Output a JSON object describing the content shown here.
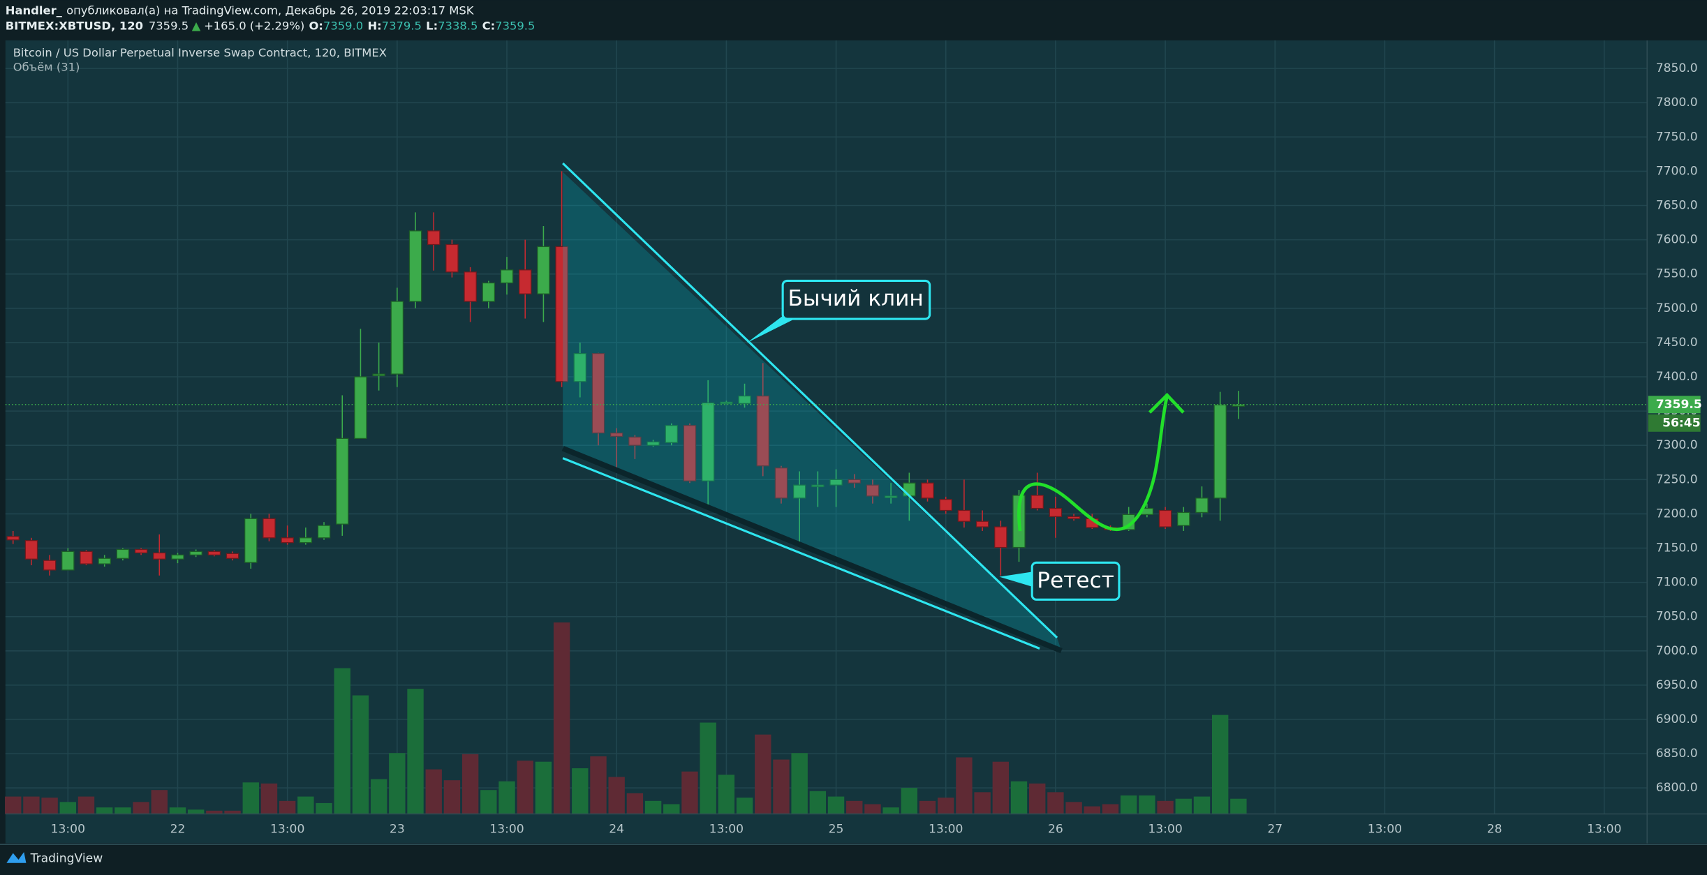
{
  "header": {
    "author": "Handler_",
    "published": "опубликовал(а) на TradingView.com, Декабрь 26, 2019 22:03:17 MSK",
    "symbol": "BITMEX:XBTUSD, 120",
    "arrow": "▲",
    "change": "+165.0 (+2.29%)",
    "ohlc": [
      {
        "label": "O:",
        "value": "7359.0"
      },
      {
        "label": "H:",
        "value": "7379.5"
      },
      {
        "label": "L:",
        "value": "7338.5"
      },
      {
        "label": "C:",
        "value": "7359.5"
      }
    ]
  },
  "footer": {
    "brand": "TradingView"
  },
  "chart_data": {
    "type": "candlestick",
    "title": "Bitcoin / US Dollar Perpetual Inverse Swap Contract, 120, BITMEX",
    "volume_label": "Объём (31)",
    "annotations": [
      "Бычий клин",
      "Ретест"
    ],
    "last_price": 7359.5,
    "countdown": "56:45",
    "up_color": "#3cab4b",
    "down_color": "#c62a30",
    "volume_up_color": "#1b6e3a",
    "volume_down_color": "#5f2a34",
    "grid": true,
    "x": [
      null,
      null,
      null,
      "13:00",
      null,
      null,
      null,
      null,
      null,
      "22",
      null,
      null,
      null,
      null,
      null,
      "13:00",
      null,
      null,
      null,
      null,
      null,
      "23",
      null,
      null,
      null,
      null,
      null,
      "13:00",
      null,
      null,
      null,
      null,
      null,
      "24",
      null,
      null,
      null,
      null,
      null,
      "13:00",
      null,
      null,
      null,
      null,
      null,
      "25",
      null,
      null,
      null,
      null,
      null,
      "13:00",
      null,
      null,
      null,
      null,
      null,
      "26",
      null,
      null,
      null,
      null,
      null,
      "13:00",
      null,
      null,
      null,
      null,
      null,
      "27",
      null,
      null,
      null,
      null,
      null,
      "13:00",
      null,
      null,
      null,
      null,
      null,
      "28",
      null,
      null,
      null,
      null,
      null,
      "13:00",
      null
    ],
    "open": [
      7167,
      7161,
      7132,
      7118,
      7145,
      7127,
      7135,
      7148,
      7143,
      7134,
      7140,
      7145,
      7142,
      7129,
      7193,
      7165,
      7158,
      7165,
      7185,
      7310,
      7402,
      7404,
      7510,
      7613,
      7593,
      7553,
      7510,
      7537,
      7556,
      7521,
      7590,
      7393,
      7434,
      7318,
      7312,
      7300,
      7304,
      7329,
      7248,
      7362,
      7361,
      7372,
      7267,
      7223,
      7241,
      7242,
      7250,
      7242,
      7226,
      7226,
      7245,
      7221,
      7205,
      7189,
      7181,
      7151,
      7227,
      7208,
      7196,
      7193,
      7180,
      7177,
      7199,
      7205,
      7183,
      7202,
      7223,
      7359.0,
      null,
      null,
      null,
      null,
      null,
      null,
      null,
      null,
      null,
      null,
      null,
      null,
      null,
      null,
      null,
      null,
      null,
      null,
      null,
      null,
      null
    ],
    "high": [
      7175,
      7165,
      7140,
      7150,
      7147,
      7140,
      7150,
      7150,
      7170,
      7143,
      7148,
      7147,
      7145,
      7200,
      7200,
      7183,
      7180,
      7188,
      7373,
      7470,
      7450,
      7530,
      7640,
      7640,
      7600,
      7560,
      7540,
      7575,
      7600,
      7620,
      7700,
      7450,
      7435,
      7325,
      7315,
      7308,
      7332,
      7332,
      7395,
      7365,
      7390,
      7420,
      7270,
      7262,
      7262,
      7265,
      7258,
      7250,
      7245,
      7260,
      7250,
      7225,
      7250,
      7205,
      7190,
      7235,
      7260,
      7225,
      7200,
      7200,
      7183,
      7210,
      7215,
      7210,
      7210,
      7240,
      7378,
      7379.5,
      null,
      null,
      null,
      null,
      null,
      null,
      null,
      null,
      null,
      null,
      null,
      null,
      null,
      null,
      null,
      null,
      null,
      null,
      null,
      null,
      null
    ],
    "low": [
      7156,
      7125,
      7110,
      7118,
      7125,
      7123,
      7132,
      7140,
      7110,
      7128,
      7137,
      7138,
      7132,
      7120,
      7160,
      7155,
      7155,
      7162,
      7168,
      7310,
      7380,
      7385,
      7500,
      7555,
      7545,
      7480,
      7500,
      7520,
      7485,
      7480,
      7385,
      7370,
      7300,
      7265,
      7280,
      7298,
      7300,
      7245,
      7210,
      7360,
      7355,
      7255,
      7215,
      7155,
      7210,
      7210,
      7238,
      7215,
      7215,
      7190,
      7218,
      7200,
      7180,
      7175,
      7110,
      7130,
      7205,
      7165,
      7190,
      7178,
      7175,
      7175,
      7195,
      7178,
      7175,
      7195,
      7190,
      7338.5,
      null,
      null,
      null,
      null,
      null,
      null,
      null,
      null,
      null,
      null,
      null,
      null,
      null,
      null,
      null,
      null,
      null,
      null,
      null,
      null,
      null
    ],
    "close": [
      7162,
      7134,
      7118,
      7145,
      7127,
      7135,
      7148,
      7143,
      7134,
      7140,
      7145,
      7140,
      7135,
      7193,
      7165,
      7158,
      7165,
      7183,
      7310,
      7400,
      7404,
      7510,
      7613,
      7593,
      7553,
      7510,
      7537,
      7556,
      7521,
      7590,
      7393,
      7434,
      7318,
      7313,
      7300,
      7305,
      7329,
      7248,
      7362,
      7363,
      7372,
      7270,
      7223,
      7242,
      7242,
      7250,
      7245,
      7226,
      7226,
      7245,
      7223,
      7205,
      7189,
      7181,
      7151,
      7227,
      7208,
      7196,
      7193,
      7180,
      7177,
      7199,
      7208,
      7181,
      7202,
      7223,
      7359,
      7359.5,
      null,
      null,
      null,
      null,
      null,
      null,
      null,
      null,
      null,
      null,
      null,
      null,
      null,
      null,
      null,
      null,
      null,
      null,
      null,
      null,
      null
    ],
    "volume": [
      16,
      16,
      15,
      11,
      16,
      6,
      6,
      11,
      22,
      6,
      4,
      3,
      3,
      29,
      28,
      12,
      16,
      10,
      134,
      109,
      32,
      56,
      115,
      41,
      31,
      55,
      22,
      30,
      49,
      48,
      176,
      42,
      53,
      34,
      19,
      12,
      9,
      39,
      84,
      36,
      15,
      73,
      50,
      56,
      21,
      16,
      12,
      9,
      6,
      24,
      12,
      15,
      52,
      20,
      48,
      30,
      28,
      20,
      11,
      7,
      9,
      17,
      17,
      12,
      14,
      16,
      91,
      14,
      null,
      null,
      null,
      null,
      null,
      null,
      null,
      null,
      null,
      null,
      null,
      null,
      null,
      null,
      null,
      null,
      null,
      null,
      null,
      null,
      null
    ],
    "ylim": [
      6762,
      7891
    ],
    "yticks": [
      {
        "value": 6800,
        "label": "6800.0"
      },
      {
        "value": 6850,
        "label": "6850.0"
      },
      {
        "value": 6900,
        "label": "6900.0"
      },
      {
        "value": 6950,
        "label": "6950.0"
      },
      {
        "value": 7000,
        "label": "7000.0"
      },
      {
        "value": 7050,
        "label": "7050.0"
      },
      {
        "value": 7100,
        "label": "7100.0"
      },
      {
        "value": 7150,
        "label": "7150.0"
      },
      {
        "value": 7200,
        "label": "7200.0"
      },
      {
        "value": 7250,
        "label": "7250.0"
      },
      {
        "value": 7300,
        "label": "7300.0"
      },
      {
        "value": 7350,
        "label": "7350.0"
      },
      {
        "value": 7400,
        "label": "7400.0"
      },
      {
        "value": 7450,
        "label": "7450.0"
      },
      {
        "value": 7500,
        "label": "7500.0"
      },
      {
        "value": 7550,
        "label": "7550.0"
      },
      {
        "value": 7600,
        "label": "7600.0"
      },
      {
        "value": 7650,
        "label": "7650.0"
      },
      {
        "value": 7700,
        "label": "7700.0"
      },
      {
        "value": 7750,
        "label": "7750.0"
      },
      {
        "value": 7800,
        "label": "7800.0"
      },
      {
        "value": 7850,
        "label": "7850.0"
      }
    ]
  }
}
